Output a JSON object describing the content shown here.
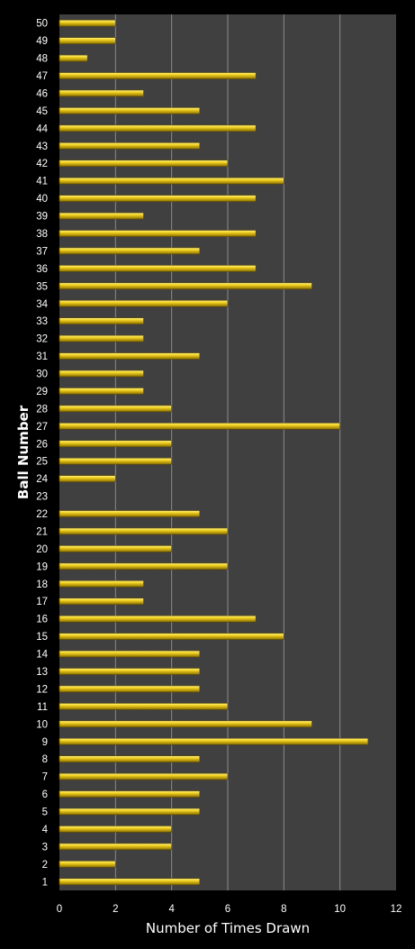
{
  "chart_data": {
    "type": "bar",
    "orientation": "horizontal",
    "categories": [
      "1",
      "2",
      "3",
      "4",
      "5",
      "6",
      "7",
      "8",
      "9",
      "10",
      "11",
      "12",
      "13",
      "14",
      "15",
      "16",
      "17",
      "18",
      "19",
      "20",
      "21",
      "22",
      "23",
      "24",
      "25",
      "26",
      "27",
      "28",
      "29",
      "30",
      "31",
      "32",
      "33",
      "34",
      "35",
      "36",
      "37",
      "38",
      "39",
      "40",
      "41",
      "42",
      "43",
      "44",
      "45",
      "46",
      "47",
      "48",
      "49",
      "50"
    ],
    "values": [
      5,
      2,
      4,
      4,
      5,
      5,
      6,
      5,
      11,
      9,
      6,
      5,
      5,
      5,
      8,
      7,
      3,
      3,
      6,
      4,
      6,
      5,
      0,
      2,
      4,
      4,
      10,
      4,
      3,
      3,
      5,
      3,
      3,
      6,
      9,
      7,
      5,
      7,
      3,
      7,
      8,
      6,
      5,
      7,
      5,
      3,
      7,
      1,
      2,
      2
    ],
    "xlabel": "Number of Times Drawn",
    "ylabel": "Ball Number",
    "xlim": [
      0,
      12
    ],
    "x_ticks": [
      "0",
      "2",
      "4",
      "6",
      "8",
      "10",
      "12"
    ],
    "grid": "vertical",
    "legend": "none",
    "colors": {
      "background": "#000000",
      "plot_area": "#404040",
      "bar": "#f2d21f",
      "bar_highlight": "#fff38a",
      "bar_shadow": "#8a6e00",
      "gridline": "#8c8c8c",
      "text": "#ffffff"
    }
  }
}
